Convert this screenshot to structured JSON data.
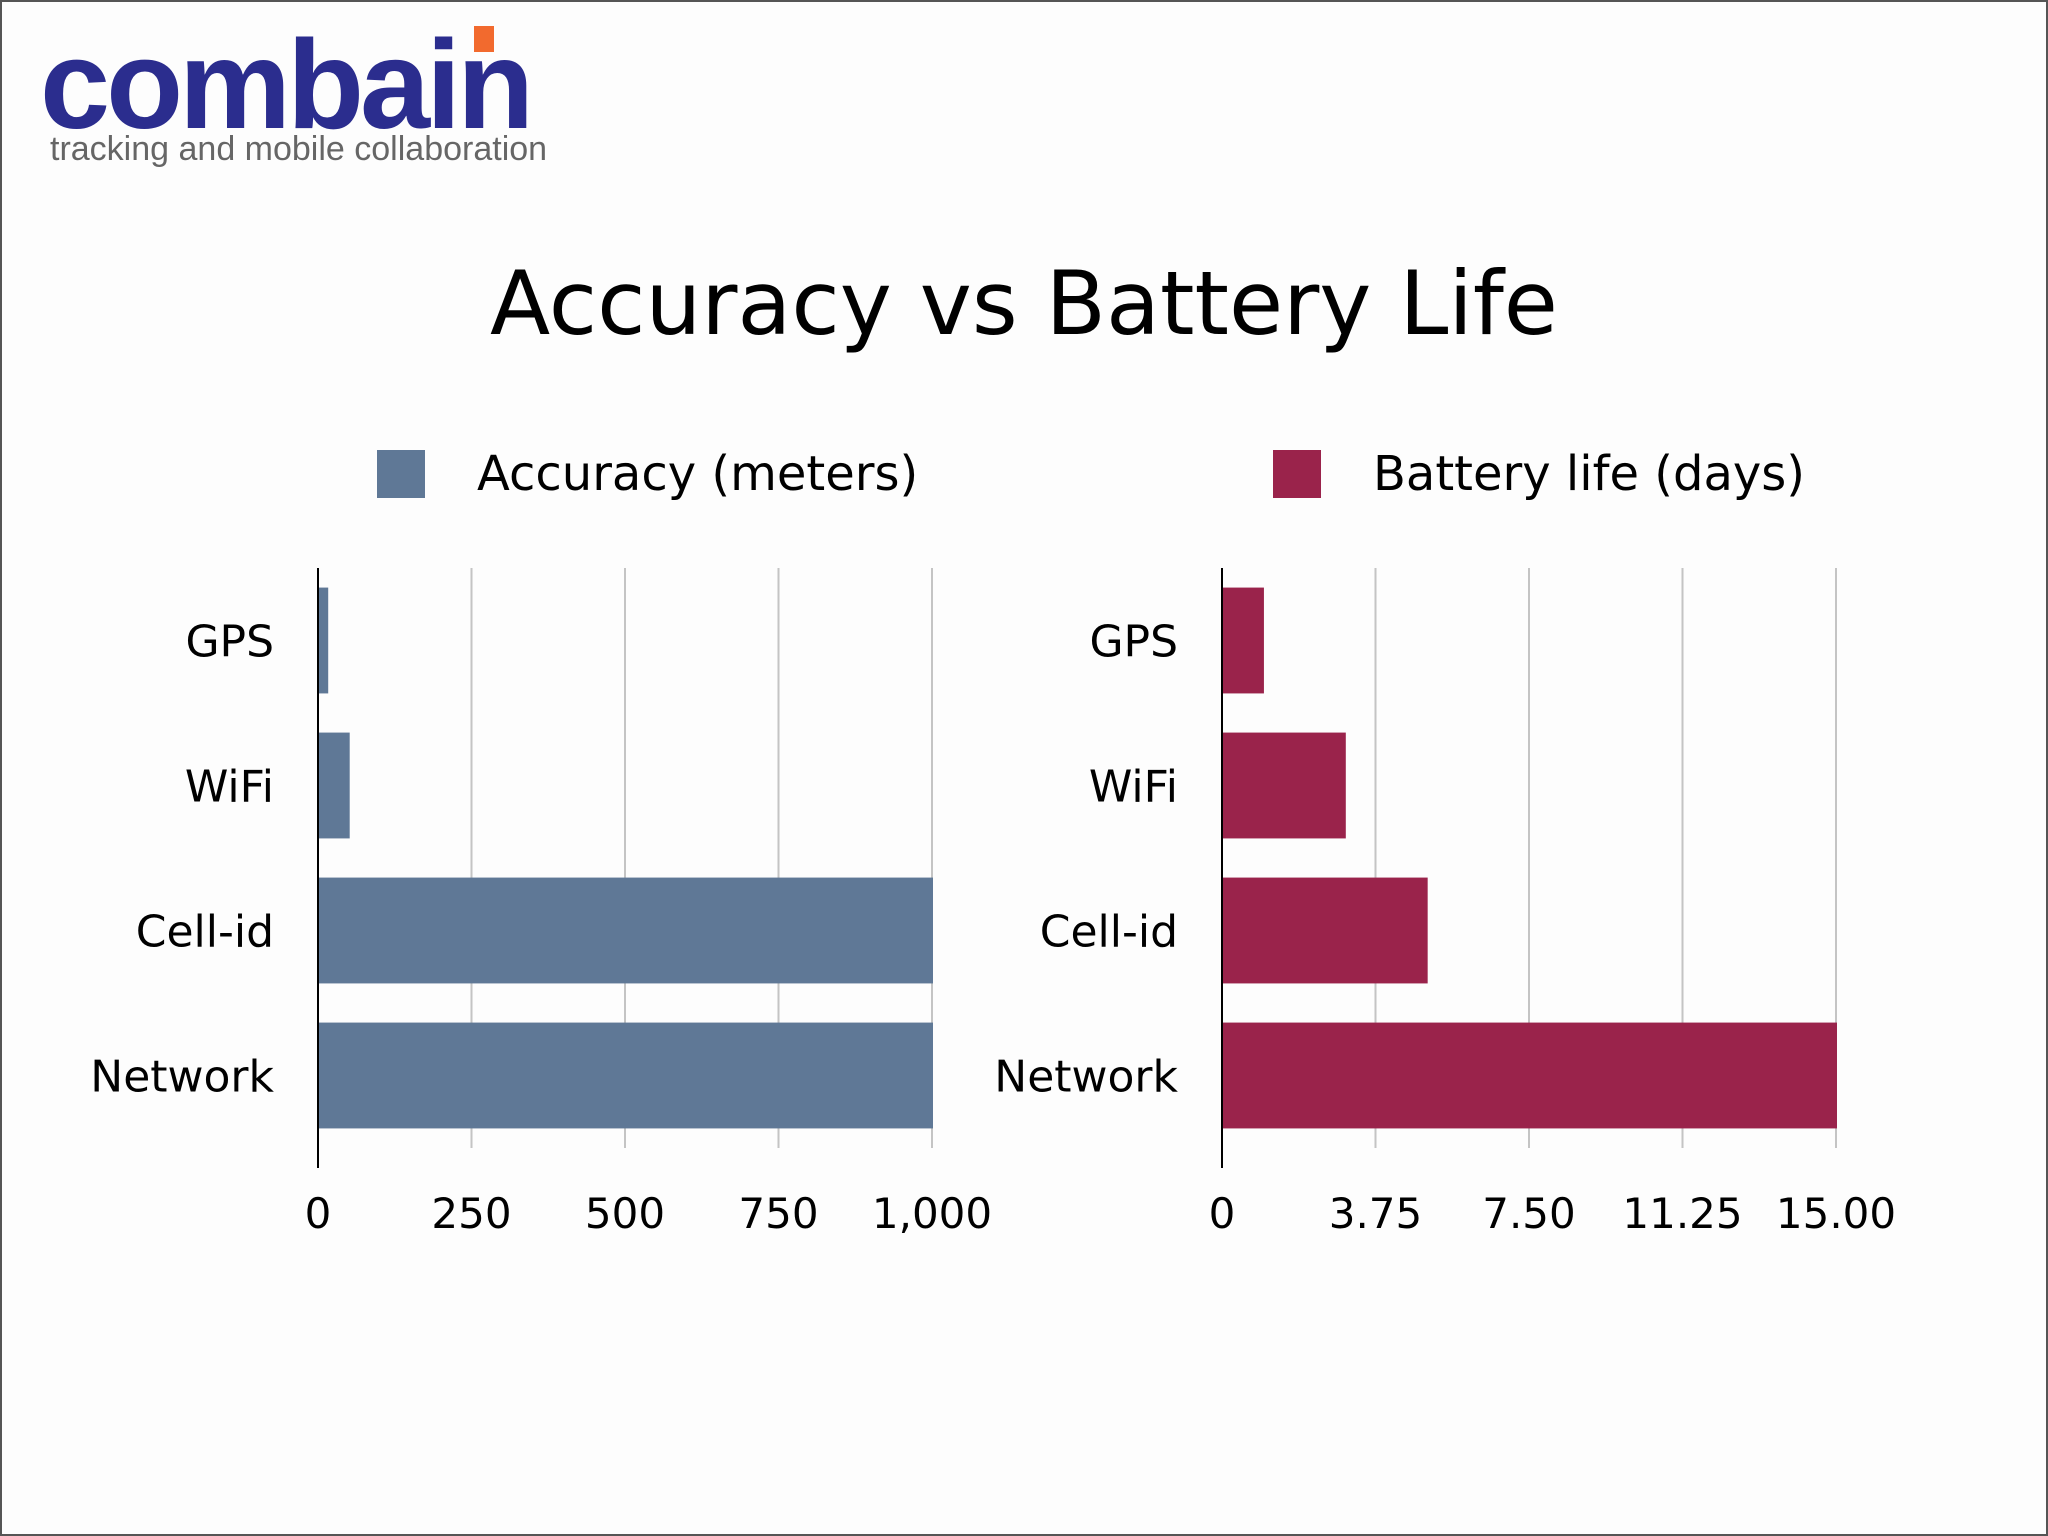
{
  "logo": {
    "brand": "combain",
    "tagline": "tracking and mobile collaboration"
  },
  "title": "Accuracy vs Battery Life",
  "colors": {
    "accuracy": "#5f7896",
    "battery": "#9a234b",
    "logo_blue": "#2b2d8e",
    "logo_orange": "#f26a2e"
  },
  "legend": {
    "accuracy_label": "Accuracy (meters)",
    "battery_label": "Battery life (days)"
  },
  "chart_data": [
    {
      "type": "bar",
      "orientation": "horizontal",
      "categories": [
        "GPS",
        "WiFi",
        "Cell-id",
        "Network"
      ],
      "series": [
        {
          "name": "Accuracy (meters)",
          "values": [
            15,
            50,
            1000,
            1000
          ]
        }
      ],
      "xlim": [
        0,
        1000
      ],
      "ticks": [
        0,
        250,
        500,
        750,
        1000
      ],
      "tick_labels": [
        "0",
        "250",
        "500",
        "750",
        "1,000"
      ],
      "grid": true
    },
    {
      "type": "bar",
      "orientation": "horizontal",
      "categories": [
        "GPS",
        "WiFi",
        "Cell-id",
        "Network"
      ],
      "series": [
        {
          "name": "Battery life (days)",
          "values": [
            1,
            3,
            5,
            15
          ]
        }
      ],
      "xlim": [
        0,
        15
      ],
      "ticks": [
        0,
        3.75,
        7.5,
        11.25,
        15
      ],
      "tick_labels": [
        "0",
        "3.75",
        "7.50",
        "11.25",
        "15.00"
      ],
      "grid": true
    }
  ]
}
